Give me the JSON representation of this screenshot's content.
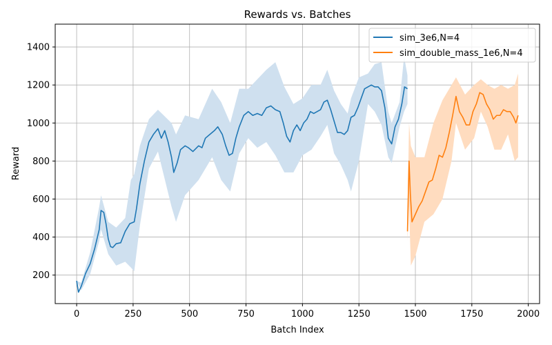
{
  "chart_data": {
    "type": "line",
    "title": "Rewards vs. Batches",
    "xlabel": "Batch Index",
    "ylabel": "Reward",
    "xlim": [
      -95,
      2050
    ],
    "ylim": [
      50,
      1520
    ],
    "xticks": [
      0,
      250,
      500,
      750,
      1000,
      1250,
      1500,
      1750,
      2000
    ],
    "yticks": [
      200,
      400,
      600,
      800,
      1000,
      1200,
      1400
    ],
    "grid": true,
    "legend_position": "top-right",
    "series": [
      {
        "name": "sim_3e6,N=4",
        "color": "#1f77b4",
        "band_color": "#cfe0ef",
        "points": [
          [
            0,
            170
          ],
          [
            8,
            110
          ],
          [
            20,
            140
          ],
          [
            40,
            210
          ],
          [
            60,
            260
          ],
          [
            80,
            340
          ],
          [
            100,
            440
          ],
          [
            108,
            540
          ],
          [
            120,
            530
          ],
          [
            130,
            470
          ],
          [
            140,
            390
          ],
          [
            150,
            350
          ],
          [
            160,
            345
          ],
          [
            175,
            365
          ],
          [
            195,
            370
          ],
          [
            215,
            430
          ],
          [
            235,
            470
          ],
          [
            255,
            480
          ],
          [
            265,
            550
          ],
          [
            280,
            680
          ],
          [
            300,
            800
          ],
          [
            320,
            900
          ],
          [
            340,
            940
          ],
          [
            360,
            970
          ],
          [
            375,
            920
          ],
          [
            390,
            960
          ],
          [
            405,
            900
          ],
          [
            420,
            820
          ],
          [
            430,
            740
          ],
          [
            445,
            790
          ],
          [
            460,
            860
          ],
          [
            480,
            880
          ],
          [
            495,
            870
          ],
          [
            515,
            850
          ],
          [
            540,
            880
          ],
          [
            555,
            870
          ],
          [
            570,
            920
          ],
          [
            590,
            940
          ],
          [
            610,
            960
          ],
          [
            625,
            980
          ],
          [
            645,
            940
          ],
          [
            660,
            880
          ],
          [
            675,
            830
          ],
          [
            690,
            840
          ],
          [
            705,
            920
          ],
          [
            720,
            980
          ],
          [
            740,
            1040
          ],
          [
            760,
            1060
          ],
          [
            780,
            1040
          ],
          [
            800,
            1050
          ],
          [
            820,
            1040
          ],
          [
            840,
            1080
          ],
          [
            860,
            1090
          ],
          [
            880,
            1070
          ],
          [
            900,
            1060
          ],
          [
            915,
            1000
          ],
          [
            930,
            930
          ],
          [
            945,
            900
          ],
          [
            960,
            960
          ],
          [
            975,
            990
          ],
          [
            990,
            960
          ],
          [
            1005,
            1000
          ],
          [
            1020,
            1020
          ],
          [
            1035,
            1060
          ],
          [
            1050,
            1050
          ],
          [
            1065,
            1060
          ],
          [
            1080,
            1070
          ],
          [
            1095,
            1110
          ],
          [
            1110,
            1120
          ],
          [
            1125,
            1070
          ],
          [
            1140,
            1010
          ],
          [
            1155,
            950
          ],
          [
            1170,
            950
          ],
          [
            1185,
            940
          ],
          [
            1200,
            960
          ],
          [
            1215,
            1030
          ],
          [
            1230,
            1040
          ],
          [
            1245,
            1080
          ],
          [
            1260,
            1130
          ],
          [
            1275,
            1180
          ],
          [
            1290,
            1190
          ],
          [
            1305,
            1200
          ],
          [
            1320,
            1190
          ],
          [
            1335,
            1190
          ],
          [
            1350,
            1170
          ],
          [
            1365,
            1080
          ],
          [
            1380,
            920
          ],
          [
            1395,
            890
          ],
          [
            1410,
            980
          ],
          [
            1425,
            1020
          ],
          [
            1440,
            1100
          ],
          [
            1452,
            1190
          ],
          [
            1465,
            1180
          ]
        ],
        "band": [
          [
            0,
            170,
            170
          ],
          [
            20,
            120,
            160
          ],
          [
            60,
            205,
            320
          ],
          [
            100,
            380,
            560
          ],
          [
            108,
            440,
            620
          ],
          [
            140,
            310,
            480
          ],
          [
            175,
            250,
            450
          ],
          [
            215,
            270,
            500
          ],
          [
            240,
            240,
            700
          ],
          [
            255,
            220,
            730
          ],
          [
            280,
            460,
            880
          ],
          [
            320,
            760,
            1020
          ],
          [
            360,
            850,
            1070
          ],
          [
            420,
            560,
            1000
          ],
          [
            440,
            480,
            940
          ],
          [
            480,
            620,
            1040
          ],
          [
            540,
            700,
            1020
          ],
          [
            600,
            820,
            1180
          ],
          [
            640,
            700,
            1110
          ],
          [
            680,
            640,
            1000
          ],
          [
            720,
            840,
            1180
          ],
          [
            760,
            920,
            1180
          ],
          [
            800,
            870,
            1230
          ],
          [
            840,
            900,
            1280
          ],
          [
            880,
            830,
            1320
          ],
          [
            920,
            740,
            1190
          ],
          [
            960,
            740,
            1100
          ],
          [
            1000,
            830,
            1130
          ],
          [
            1040,
            860,
            1200
          ],
          [
            1080,
            930,
            1200
          ],
          [
            1110,
            990,
            1280
          ],
          [
            1140,
            840,
            1170
          ],
          [
            1170,
            780,
            1100
          ],
          [
            1200,
            700,
            1050
          ],
          [
            1215,
            640,
            1130
          ],
          [
            1250,
            800,
            1240
          ],
          [
            1290,
            1100,
            1260
          ],
          [
            1320,
            1060,
            1310
          ],
          [
            1350,
            990,
            1320
          ],
          [
            1380,
            820,
            1060
          ],
          [
            1395,
            790,
            1000
          ],
          [
            1430,
            980,
            1110
          ],
          [
            1450,
            1060,
            1350
          ],
          [
            1465,
            1100,
            1250
          ]
        ]
      },
      {
        "name": "sim_double_mass_1e6,N=4",
        "color": "#ff7f0e",
        "band_color": "#ffdcbf",
        "points": [
          [
            1465,
            430
          ],
          [
            1472,
            800
          ],
          [
            1478,
            620
          ],
          [
            1485,
            480
          ],
          [
            1500,
            520
          ],
          [
            1515,
            560
          ],
          [
            1530,
            590
          ],
          [
            1545,
            640
          ],
          [
            1560,
            690
          ],
          [
            1575,
            700
          ],
          [
            1590,
            760
          ],
          [
            1605,
            830
          ],
          [
            1620,
            820
          ],
          [
            1635,
            870
          ],
          [
            1650,
            950
          ],
          [
            1665,
            1040
          ],
          [
            1680,
            1140
          ],
          [
            1695,
            1060
          ],
          [
            1710,
            1030
          ],
          [
            1725,
            990
          ],
          [
            1740,
            990
          ],
          [
            1755,
            1060
          ],
          [
            1770,
            1100
          ],
          [
            1785,
            1160
          ],
          [
            1800,
            1150
          ],
          [
            1815,
            1100
          ],
          [
            1830,
            1070
          ],
          [
            1845,
            1020
          ],
          [
            1860,
            1040
          ],
          [
            1875,
            1040
          ],
          [
            1890,
            1070
          ],
          [
            1905,
            1060
          ],
          [
            1920,
            1060
          ],
          [
            1935,
            1030
          ],
          [
            1945,
            1000
          ],
          [
            1955,
            1040
          ]
        ],
        "band": [
          [
            1465,
            380,
            530
          ],
          [
            1472,
            560,
            1000
          ],
          [
            1480,
            250,
            880
          ],
          [
            1500,
            300,
            820
          ],
          [
            1540,
            480,
            820
          ],
          [
            1580,
            520,
            1000
          ],
          [
            1620,
            600,
            1120
          ],
          [
            1660,
            800,
            1200
          ],
          [
            1680,
            1000,
            1240
          ],
          [
            1720,
            860,
            1150
          ],
          [
            1760,
            920,
            1200
          ],
          [
            1790,
            1060,
            1230
          ],
          [
            1820,
            980,
            1200
          ],
          [
            1850,
            860,
            1180
          ],
          [
            1880,
            860,
            1200
          ],
          [
            1910,
            940,
            1180
          ],
          [
            1940,
            800,
            1200
          ],
          [
            1955,
            820,
            1260
          ]
        ]
      }
    ]
  }
}
